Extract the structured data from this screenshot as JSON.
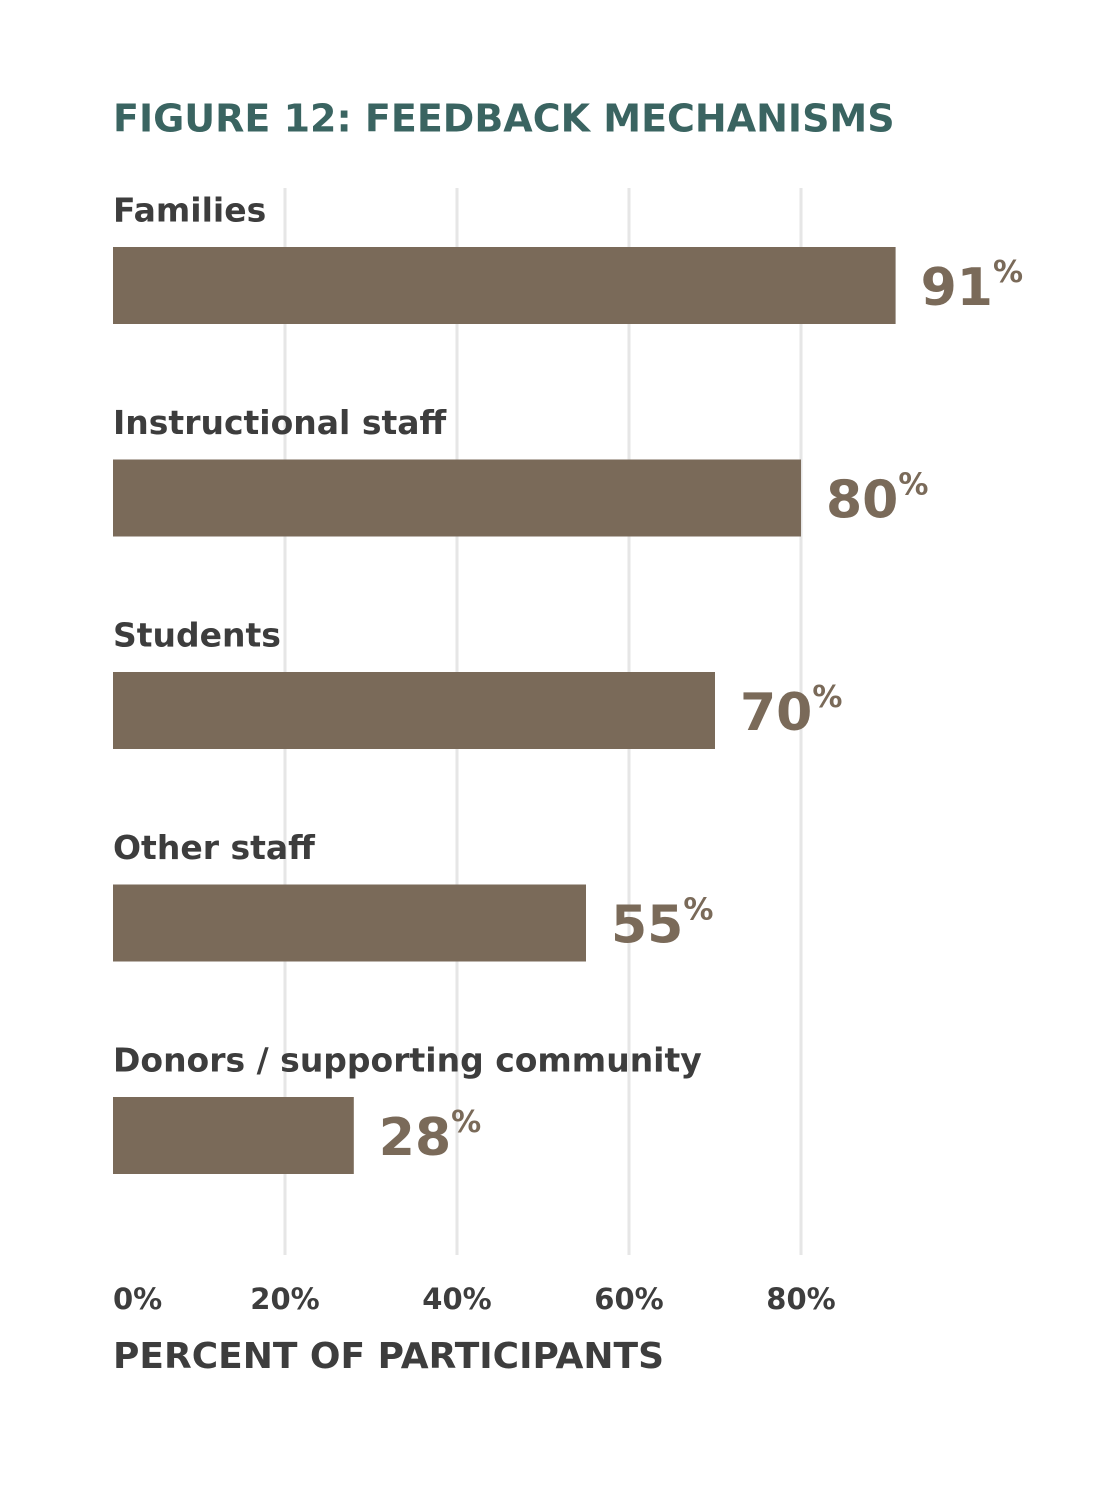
{
  "chart_data": {
    "type": "bar",
    "orientation": "horizontal",
    "title": "FIGURE 12: FEEDBACK MECHANISMS",
    "x_label": "PERCENT OF PARTICIPANTS",
    "categories": [
      "Families",
      "Instructional staff",
      "Students",
      "Other staff",
      "Donors / supporting community"
    ],
    "values": [
      91,
      80,
      70,
      55,
      28
    ],
    "value_labels": [
      "91%",
      "80%",
      "70%",
      "55%",
      "28%"
    ],
    "color": "#7a6a59",
    "xlim": [
      0,
      100
    ],
    "xticks": [
      {
        "value": 0,
        "label": "0%"
      },
      {
        "value": 20,
        "label": "20%"
      },
      {
        "value": 40,
        "label": "40%"
      },
      {
        "value": 60,
        "label": "60%"
      },
      {
        "value": 80,
        "label": "80%"
      }
    ],
    "grid": true
  }
}
